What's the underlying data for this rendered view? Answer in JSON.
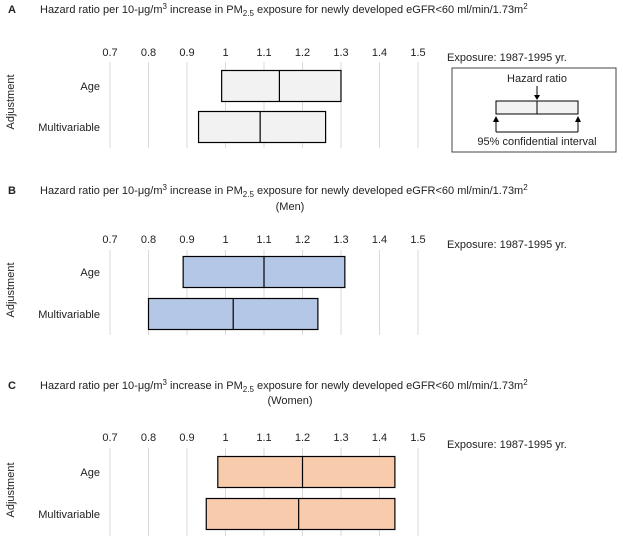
{
  "chart_data": [
    {
      "type": "box",
      "panel_letter": "A",
      "title": {
        "pre": "Hazard ratio per 10-μg/m",
        "sup": "3",
        "mid": " increase in PM",
        "sub": "2.5",
        "post": " exposure for newly developed eGFR<60 ml/min/1.73m",
        "sup2": "2"
      },
      "subtitle": "",
      "ylabel": "Adjustment",
      "exposure_label": "Exposure: 1987-1995 yr.",
      "xticks": [
        "0.7",
        "0.8",
        "0.9",
        "1",
        "1.1",
        "1.2",
        "1.3",
        "1.4",
        "1.5"
      ],
      "xlim": [
        0.7,
        1.5
      ],
      "fill_color": "#f2f2f2",
      "rows": [
        {
          "label": "Age",
          "lower": 0.99,
          "hr": 1.14,
          "upper": 1.3
        },
        {
          "label": "Multivariable",
          "lower": 0.93,
          "hr": 1.09,
          "upper": 1.26
        }
      ],
      "legend": {
        "hr_label": "Hazard ratio",
        "ci_label": "95% confidential interval"
      }
    },
    {
      "type": "box",
      "panel_letter": "B",
      "title": {
        "pre": "Hazard ratio per 10-μg/m",
        "sup": "3",
        "mid": " increase in PM",
        "sub": "2.5",
        "post": " exposure for newly developed eGFR<60 ml/min/1.73m",
        "sup2": "2"
      },
      "subtitle": "(Men)",
      "ylabel": "Adjustment",
      "exposure_label": "Exposure: 1987-1995 yr.",
      "xticks": [
        "0.7",
        "0.8",
        "0.9",
        "1",
        "1.1",
        "1.2",
        "1.3",
        "1.4",
        "1.5"
      ],
      "xlim": [
        0.7,
        1.5
      ],
      "fill_color": "#b4c7e7",
      "rows": [
        {
          "label": "Age",
          "lower": 0.89,
          "hr": 1.1,
          "upper": 1.31
        },
        {
          "label": "Multivariable",
          "lower": 0.8,
          "hr": 1.02,
          "upper": 1.24
        }
      ]
    },
    {
      "type": "box",
      "panel_letter": "C",
      "title": {
        "pre": "Hazard ratio per 10-μg/m",
        "sup": "3",
        "mid": " increase in PM",
        "sub": "2.5",
        "post": " exposure for newly developed eGFR<60 ml/min/1.73m",
        "sup2": "2"
      },
      "subtitle": "(Women)",
      "ylabel": "Adjustment",
      "exposure_label": "Exposure: 1987-1995 yr.",
      "xticks": [
        "0.7",
        "0.8",
        "0.9",
        "1",
        "1.1",
        "1.2",
        "1.3",
        "1.4",
        "1.5"
      ],
      "xlim": [
        0.7,
        1.5
      ],
      "fill_color": "#f8cbad",
      "rows": [
        {
          "label": "Age",
          "lower": 0.98,
          "hr": 1.2,
          "upper": 1.44
        },
        {
          "label": "Multivariable",
          "lower": 0.95,
          "hr": 1.19,
          "upper": 1.44
        }
      ]
    }
  ]
}
